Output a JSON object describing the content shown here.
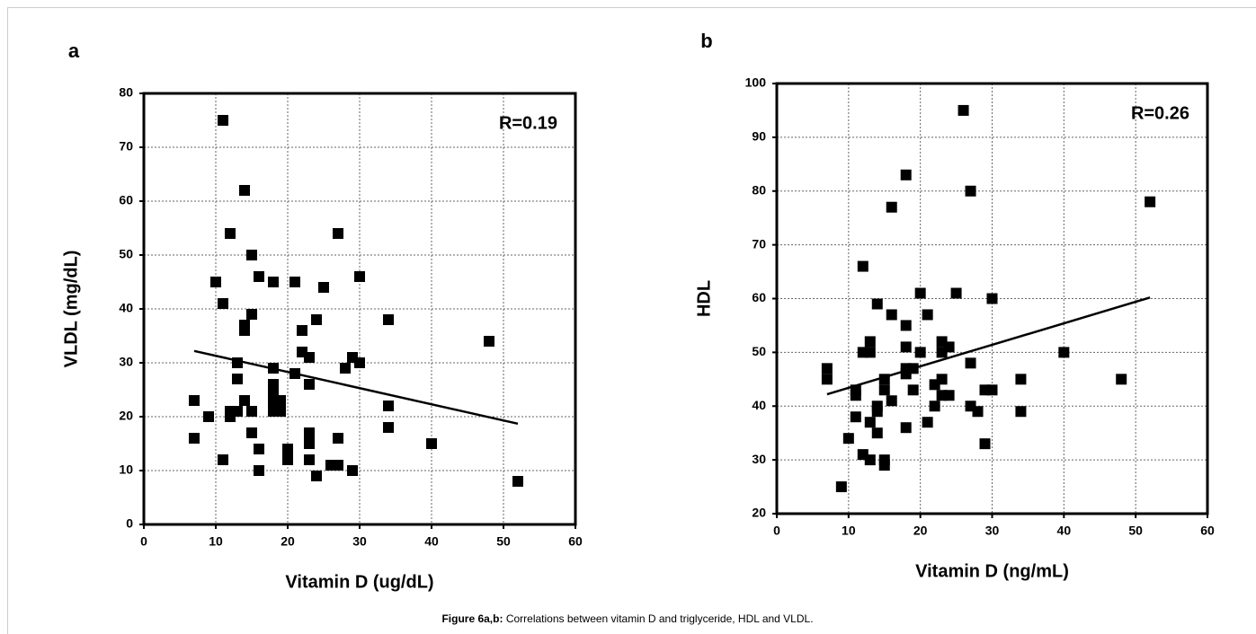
{
  "chart_data": [
    {
      "type": "scatter",
      "panel": "a",
      "annotation": "R=0.19",
      "xlabel": "Vitamin D (ug/dL)",
      "ylabel": "VLDL (mg/dL)",
      "xlim": [
        0,
        60
      ],
      "xticks": [
        0,
        10,
        20,
        30,
        40,
        50,
        60
      ],
      "ylim": [
        0,
        80
      ],
      "yticks": [
        0,
        10,
        20,
        30,
        40,
        50,
        60,
        70,
        80
      ],
      "grid": true,
      "color": "#000000",
      "x": [
        11,
        14,
        12,
        27,
        15,
        10,
        16,
        18,
        21,
        25,
        30,
        11,
        15,
        14,
        14,
        24,
        34,
        22,
        48,
        22,
        23,
        29,
        30,
        13,
        18,
        28,
        21,
        13,
        18,
        23,
        18,
        18,
        7,
        14,
        18,
        19,
        19,
        34,
        12,
        13,
        15,
        18,
        19,
        12,
        9,
        34,
        15,
        23,
        7,
        23,
        27,
        23,
        40,
        16,
        20,
        20,
        11,
        20,
        23,
        26,
        27,
        16,
        29,
        24,
        52
      ],
      "values": [
        75,
        62,
        54,
        54,
        50,
        45,
        46,
        45,
        45,
        44,
        46,
        41,
        39,
        37,
        36,
        38,
        38,
        36,
        34,
        32,
        31,
        31,
        30,
        30,
        29,
        29,
        28,
        27,
        26,
        26,
        25,
        24,
        23,
        23,
        23,
        23,
        22,
        22,
        21,
        21,
        21,
        21,
        21,
        20,
        20,
        18,
        17,
        17,
        16,
        16,
        16,
        15,
        15,
        14,
        14,
        13,
        12,
        12,
        12,
        11,
        11,
        10,
        10,
        9,
        8
      ],
      "trend": {
        "x": [
          7,
          52
        ],
        "y": [
          32.2,
          18.7
        ]
      }
    },
    {
      "type": "scatter",
      "panel": "b",
      "annotation": "R=0.26",
      "xlabel": "Vitamin D (ng/mL)",
      "ylabel": "HDL",
      "xlim": [
        0,
        60
      ],
      "xticks": [
        0,
        10,
        20,
        30,
        40,
        50,
        60
      ],
      "ylim": [
        20,
        100
      ],
      "yticks": [
        20,
        30,
        40,
        50,
        60,
        70,
        80,
        90,
        100
      ],
      "grid": true,
      "color": "#000000",
      "x": [
        26,
        18,
        27,
        16,
        52,
        12,
        20,
        25,
        30,
        14,
        16,
        21,
        18,
        13,
        23,
        12,
        13,
        20,
        24,
        18,
        40,
        23,
        27,
        7,
        7,
        18,
        19,
        18,
        15,
        23,
        34,
        48,
        15,
        19,
        11,
        11,
        22,
        29,
        30,
        23,
        24,
        16,
        14,
        22,
        27,
        28,
        34,
        14,
        11,
        13,
        21,
        18,
        14,
        10,
        29,
        12,
        13,
        15,
        15,
        9
      ],
      "values": [
        95,
        83,
        80,
        77,
        78,
        66,
        61,
        61,
        60,
        59,
        57,
        57,
        55,
        52,
        52,
        50,
        50,
        50,
        51,
        51,
        50,
        50,
        48,
        47,
        45,
        47,
        47,
        46,
        45,
        45,
        45,
        45,
        43,
        43,
        43,
        42,
        44,
        43,
        43,
        42,
        42,
        41,
        40,
        40,
        40,
        39,
        39,
        39,
        38,
        37,
        37,
        36,
        35,
        34,
        33,
        31,
        30,
        30,
        29,
        25
      ],
      "trend": {
        "x": [
          7,
          52
        ],
        "y": [
          42.2,
          60.2
        ]
      }
    }
  ],
  "caption": {
    "label": "Figure 6a,b:",
    "text": "Correlations between vitamin D and triglyceride, HDL and VLDL."
  }
}
